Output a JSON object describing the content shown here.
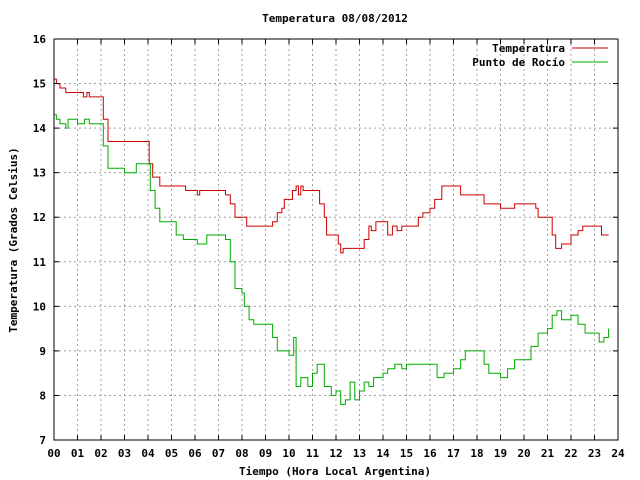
{
  "chart_data": {
    "type": "line",
    "title": "Temperatura 08/08/2012",
    "xlabel": "Tiempo (Hora Local Argentina)",
    "ylabel": "Temperatura (Grados Celsius)",
    "xlim": [
      0,
      24
    ],
    "ylim": [
      7,
      16
    ],
    "grid": true,
    "legend_position": "top-right",
    "x_ticks": [
      "00",
      "01",
      "02",
      "03",
      "04",
      "05",
      "06",
      "07",
      "08",
      "09",
      "10",
      "11",
      "12",
      "13",
      "14",
      "15",
      "16",
      "17",
      "18",
      "19",
      "20",
      "21",
      "22",
      "23",
      "24"
    ],
    "y_ticks": [
      7,
      8,
      9,
      10,
      11,
      12,
      13,
      14,
      15,
      16
    ],
    "series": [
      {
        "name": "Temperatura",
        "color": "#cc0000",
        "points": [
          [
            0.0,
            15.1
          ],
          [
            0.1,
            15.0
          ],
          [
            0.25,
            14.9
          ],
          [
            0.5,
            14.8
          ],
          [
            1.0,
            14.8
          ],
          [
            1.25,
            14.7
          ],
          [
            1.4,
            14.8
          ],
          [
            1.5,
            14.7
          ],
          [
            2.0,
            14.7
          ],
          [
            2.1,
            14.2
          ],
          [
            2.3,
            13.7
          ],
          [
            3.0,
            13.7
          ],
          [
            3.5,
            13.7
          ],
          [
            4.0,
            13.7
          ],
          [
            4.05,
            13.2
          ],
          [
            4.2,
            12.9
          ],
          [
            4.5,
            12.7
          ],
          [
            5.0,
            12.7
          ],
          [
            5.5,
            12.7
          ],
          [
            5.6,
            12.6
          ],
          [
            6.0,
            12.6
          ],
          [
            6.1,
            12.5
          ],
          [
            6.2,
            12.6
          ],
          [
            7.0,
            12.6
          ],
          [
            7.3,
            12.5
          ],
          [
            7.5,
            12.3
          ],
          [
            7.7,
            12.0
          ],
          [
            8.0,
            12.0
          ],
          [
            8.2,
            11.8
          ],
          [
            9.0,
            11.8
          ],
          [
            9.3,
            11.9
          ],
          [
            9.5,
            12.1
          ],
          [
            9.7,
            12.2
          ],
          [
            9.8,
            12.4
          ],
          [
            10.0,
            12.4
          ],
          [
            10.15,
            12.6
          ],
          [
            10.3,
            12.7
          ],
          [
            10.4,
            12.5
          ],
          [
            10.5,
            12.7
          ],
          [
            10.6,
            12.6
          ],
          [
            11.0,
            12.6
          ],
          [
            11.2,
            12.6
          ],
          [
            11.3,
            12.3
          ],
          [
            11.5,
            12.0
          ],
          [
            11.6,
            11.6
          ],
          [
            12.0,
            11.6
          ],
          [
            12.1,
            11.4
          ],
          [
            12.2,
            11.2
          ],
          [
            12.3,
            11.3
          ],
          [
            12.5,
            11.3
          ],
          [
            13.0,
            11.3
          ],
          [
            13.2,
            11.5
          ],
          [
            13.4,
            11.8
          ],
          [
            13.5,
            11.7
          ],
          [
            13.7,
            11.9
          ],
          [
            14.0,
            11.9
          ],
          [
            14.2,
            11.6
          ],
          [
            14.4,
            11.8
          ],
          [
            14.6,
            11.7
          ],
          [
            14.8,
            11.8
          ],
          [
            15.2,
            11.8
          ],
          [
            15.5,
            12.0
          ],
          [
            15.7,
            12.1
          ],
          [
            16.0,
            12.2
          ],
          [
            16.2,
            12.4
          ],
          [
            16.5,
            12.7
          ],
          [
            17.0,
            12.7
          ],
          [
            17.3,
            12.5
          ],
          [
            17.5,
            12.5
          ],
          [
            18.0,
            12.5
          ],
          [
            18.3,
            12.3
          ],
          [
            18.5,
            12.3
          ],
          [
            19.0,
            12.2
          ],
          [
            19.5,
            12.2
          ],
          [
            19.6,
            12.3
          ],
          [
            20.0,
            12.3
          ],
          [
            20.5,
            12.2
          ],
          [
            20.6,
            12.0
          ],
          [
            21.0,
            12.0
          ],
          [
            21.2,
            11.6
          ],
          [
            21.35,
            11.3
          ],
          [
            21.6,
            11.4
          ],
          [
            22.0,
            11.6
          ],
          [
            22.3,
            11.7
          ],
          [
            22.5,
            11.8
          ],
          [
            23.0,
            11.8
          ],
          [
            23.3,
            11.6
          ],
          [
            23.5,
            11.6
          ],
          [
            23.6,
            11.6
          ]
        ]
      },
      {
        "name": "Punto de Rocío",
        "color": "#00aa00",
        "points": [
          [
            0.0,
            14.3
          ],
          [
            0.1,
            14.2
          ],
          [
            0.25,
            14.1
          ],
          [
            0.5,
            14.0
          ],
          [
            0.6,
            14.2
          ],
          [
            1.0,
            14.1
          ],
          [
            1.3,
            14.2
          ],
          [
            1.5,
            14.1
          ],
          [
            2.0,
            14.1
          ],
          [
            2.1,
            13.6
          ],
          [
            2.3,
            13.1
          ],
          [
            3.0,
            13.0
          ],
          [
            3.5,
            13.2
          ],
          [
            4.0,
            13.2
          ],
          [
            4.1,
            12.6
          ],
          [
            4.3,
            12.2
          ],
          [
            4.5,
            11.9
          ],
          [
            5.0,
            11.9
          ],
          [
            5.2,
            11.6
          ],
          [
            5.5,
            11.5
          ],
          [
            6.0,
            11.5
          ],
          [
            6.1,
            11.4
          ],
          [
            6.5,
            11.6
          ],
          [
            7.0,
            11.6
          ],
          [
            7.3,
            11.5
          ],
          [
            7.5,
            11.0
          ],
          [
            7.7,
            10.4
          ],
          [
            8.0,
            10.3
          ],
          [
            8.1,
            10.0
          ],
          [
            8.3,
            9.7
          ],
          [
            8.5,
            9.6
          ],
          [
            9.0,
            9.6
          ],
          [
            9.2,
            9.6
          ],
          [
            9.3,
            9.3
          ],
          [
            9.5,
            9.0
          ],
          [
            10.0,
            8.9
          ],
          [
            10.2,
            9.3
          ],
          [
            10.3,
            8.2
          ],
          [
            10.5,
            8.4
          ],
          [
            10.8,
            8.2
          ],
          [
            11.0,
            8.5
          ],
          [
            11.2,
            8.7
          ],
          [
            11.5,
            8.2
          ],
          [
            11.8,
            8.0
          ],
          [
            12.0,
            8.1
          ],
          [
            12.2,
            7.8
          ],
          [
            12.4,
            7.9
          ],
          [
            12.6,
            8.3
          ],
          [
            12.8,
            7.9
          ],
          [
            13.0,
            8.1
          ],
          [
            13.2,
            8.3
          ],
          [
            13.4,
            8.2
          ],
          [
            13.6,
            8.4
          ],
          [
            14.0,
            8.5
          ],
          [
            14.2,
            8.6
          ],
          [
            14.5,
            8.7
          ],
          [
            14.8,
            8.6
          ],
          [
            15.0,
            8.7
          ],
          [
            15.5,
            8.7
          ],
          [
            16.0,
            8.7
          ],
          [
            16.3,
            8.4
          ],
          [
            16.6,
            8.5
          ],
          [
            17.0,
            8.6
          ],
          [
            17.3,
            8.8
          ],
          [
            17.5,
            9.0
          ],
          [
            18.0,
            9.0
          ],
          [
            18.3,
            8.7
          ],
          [
            18.5,
            8.5
          ],
          [
            19.0,
            8.4
          ],
          [
            19.3,
            8.6
          ],
          [
            19.6,
            8.8
          ],
          [
            20.0,
            8.8
          ],
          [
            20.3,
            9.1
          ],
          [
            20.6,
            9.4
          ],
          [
            21.0,
            9.5
          ],
          [
            21.2,
            9.8
          ],
          [
            21.4,
            9.9
          ],
          [
            21.6,
            9.7
          ],
          [
            22.0,
            9.8
          ],
          [
            22.3,
            9.6
          ],
          [
            22.6,
            9.4
          ],
          [
            23.0,
            9.4
          ],
          [
            23.2,
            9.2
          ],
          [
            23.4,
            9.3
          ],
          [
            23.6,
            9.5
          ]
        ]
      }
    ]
  }
}
